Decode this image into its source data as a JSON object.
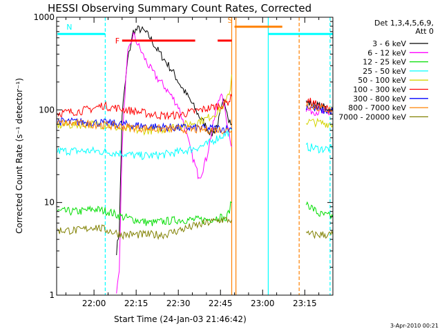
{
  "chart_data": {
    "type": "line",
    "title": "HESSI Observing Summary Count Rates, Corrected",
    "xlabel": "Start Time (24-Jan-03 21:46:42)",
    "ylabel": "Corrected Count Rate (s⁻¹ detector⁻¹)",
    "y_scale": "log",
    "ylim": [
      1,
      1000
    ],
    "xlim": [
      -13.3,
      85
    ],
    "x_unit": "minutes after 22:00",
    "x_ticks": [
      {
        "v": 0,
        "label": "22:00"
      },
      {
        "v": 15,
        "label": "22:15"
      },
      {
        "v": 30,
        "label": "22:30"
      },
      {
        "v": 45,
        "label": "22:45"
      },
      {
        "v": 60,
        "label": "23:00"
      },
      {
        "v": 75,
        "label": "23:15"
      }
    ],
    "y_ticks": [
      {
        "v": 1,
        "label": "1"
      },
      {
        "v": 10,
        "label": "10"
      },
      {
        "v": 100,
        "label": "100"
      },
      {
        "v": 1000,
        "label": "1000"
      }
    ],
    "legend_header": [
      "Det 1,3,4,5,6,9,",
      "Att 0"
    ],
    "legend_position": "right, outside plot",
    "series": [
      {
        "name": "3 - 6 keV",
        "color": "#000000",
        "points": [
          [
            8,
            3
          ],
          [
            9,
            5
          ],
          [
            10,
            90
          ],
          [
            12,
            350
          ],
          [
            14,
            700
          ],
          [
            16,
            750
          ],
          [
            18,
            700
          ],
          [
            20,
            600
          ],
          [
            22,
            470
          ],
          [
            25,
            350
          ],
          [
            28,
            260
          ],
          [
            31,
            180
          ],
          [
            34,
            130
          ],
          [
            37,
            90
          ],
          [
            40,
            65
          ],
          [
            42,
            55
          ],
          [
            44,
            70
          ],
          [
            46,
            120
          ],
          [
            47,
            110
          ],
          [
            48,
            80
          ],
          [
            49,
            70
          ],
          [
            75.5,
            120
          ],
          [
            85,
            100
          ]
        ]
      },
      {
        "name": "6 - 12 keV",
        "color": "#ff00ff",
        "points": [
          [
            8,
            1
          ],
          [
            9,
            2
          ],
          [
            10,
            40
          ],
          [
            11,
            150
          ],
          [
            12,
            400
          ],
          [
            14,
            650
          ],
          [
            16,
            480
          ],
          [
            18,
            360
          ],
          [
            20,
            280
          ],
          [
            22,
            230
          ],
          [
            25,
            180
          ],
          [
            28,
            135
          ],
          [
            30,
            110
          ],
          [
            32,
            70
          ],
          [
            34,
            40
          ],
          [
            36,
            25
          ],
          [
            37,
            20
          ],
          [
            38,
            20
          ],
          [
            40,
            30
          ],
          [
            42,
            60
          ],
          [
            44,
            120
          ],
          [
            45,
            150
          ],
          [
            46,
            120
          ],
          [
            48,
            60
          ],
          [
            49,
            40
          ],
          [
            75.5,
            100
          ],
          [
            85,
            90
          ]
        ]
      },
      {
        "name": "12 - 25 keV",
        "color": "#00dd00",
        "points": [
          [
            -13,
            8
          ],
          [
            -5,
            8
          ],
          [
            0,
            8.5
          ],
          [
            5,
            8
          ],
          [
            10,
            7
          ],
          [
            20,
            6
          ],
          [
            30,
            6.5
          ],
          [
            40,
            6.5
          ],
          [
            45,
            7
          ],
          [
            47,
            6.5
          ],
          [
            49,
            10
          ],
          [
            75.5,
            10
          ],
          [
            80,
            7.5
          ],
          [
            85,
            7
          ]
        ]
      },
      {
        "name": "25 - 50 keV",
        "color": "#00ffff",
        "points": [
          [
            -13,
            36
          ],
          [
            -5,
            36
          ],
          [
            0,
            36
          ],
          [
            5,
            35
          ],
          [
            10,
            34
          ],
          [
            15,
            32
          ],
          [
            20,
            32
          ],
          [
            25,
            33
          ],
          [
            30,
            35
          ],
          [
            35,
            38
          ],
          [
            40,
            42
          ],
          [
            44,
            50
          ],
          [
            47,
            55
          ],
          [
            49,
            60
          ],
          [
            75.5,
            40
          ],
          [
            80,
            38
          ],
          [
            85,
            38
          ]
        ]
      },
      {
        "name": "50 - 100 keV",
        "color": "#d4d400",
        "points": [
          [
            -13,
            68
          ],
          [
            0,
            70
          ],
          [
            5,
            68
          ],
          [
            10,
            62
          ],
          [
            15,
            60
          ],
          [
            20,
            60
          ],
          [
            25,
            62
          ],
          [
            30,
            67
          ],
          [
            35,
            72
          ],
          [
            40,
            80
          ],
          [
            44,
            95
          ],
          [
            47,
            120
          ],
          [
            48.5,
            170
          ],
          [
            49,
            240
          ],
          [
            75.5,
            75
          ],
          [
            85,
            70
          ]
        ]
      },
      {
        "name": "100 - 300 keV",
        "color": "#ff0000",
        "points": [
          [
            -13,
            92
          ],
          [
            -5,
            97
          ],
          [
            0,
            104
          ],
          [
            3,
            112
          ],
          [
            5,
            108
          ],
          [
            8,
            105
          ],
          [
            10,
            102
          ],
          [
            15,
            96
          ],
          [
            20,
            90
          ],
          [
            25,
            86
          ],
          [
            30,
            88
          ],
          [
            35,
            95
          ],
          [
            40,
            103
          ],
          [
            45,
            112
          ],
          [
            47,
            118
          ],
          [
            48,
            125
          ],
          [
            49,
            140
          ],
          [
            75.5,
            130
          ],
          [
            80,
            110
          ],
          [
            85,
            98
          ]
        ]
      },
      {
        "name": "300 - 800 keV",
        "color": "#0000ff",
        "points": [
          [
            -13,
            75
          ],
          [
            -5,
            74
          ],
          [
            0,
            73
          ],
          [
            5,
            72
          ],
          [
            10,
            70
          ],
          [
            15,
            68
          ],
          [
            20,
            66
          ],
          [
            25,
            65
          ],
          [
            30,
            64
          ],
          [
            35,
            64
          ],
          [
            40,
            63
          ],
          [
            45,
            63
          ],
          [
            49,
            62
          ],
          [
            75.5,
            110
          ],
          [
            80,
            100
          ],
          [
            85,
            96
          ]
        ]
      },
      {
        "name": "800 - 7000 keV",
        "color": "#ff8000",
        "points": [
          [
            -13,
            72
          ],
          [
            -5,
            71
          ],
          [
            0,
            70
          ],
          [
            5,
            68
          ],
          [
            10,
            66
          ],
          [
            15,
            64
          ],
          [
            20,
            63
          ],
          [
            25,
            62
          ],
          [
            30,
            62
          ],
          [
            35,
            61
          ],
          [
            40,
            61
          ],
          [
            45,
            61
          ],
          [
            49,
            60
          ],
          [
            75.5,
            115
          ],
          [
            80,
            105
          ],
          [
            85,
            100
          ]
        ]
      },
      {
        "name": "7000 - 20000 keV",
        "color": "#808000",
        "points": [
          [
            -13,
            5
          ],
          [
            -5,
            5
          ],
          [
            0,
            5.5
          ],
          [
            5,
            5
          ],
          [
            10,
            4.5
          ],
          [
            15,
            4.5
          ],
          [
            20,
            4.5
          ],
          [
            25,
            4.5
          ],
          [
            30,
            5
          ],
          [
            35,
            5.5
          ],
          [
            40,
            6
          ],
          [
            45,
            6.5
          ],
          [
            49,
            6.5
          ],
          [
            75.5,
            4.5
          ],
          [
            80,
            4.5
          ],
          [
            85,
            4.5
          ]
        ]
      }
    ],
    "flags": [
      {
        "name": "F",
        "color": "#ff0000",
        "value": 560,
        "segments": [
          [
            10,
            36
          ],
          [
            44,
            49
          ]
        ]
      },
      {
        "name": "N",
        "color": "#00ffff",
        "value": 660,
        "segments": [
          [
            -13,
            4
          ],
          [
            62,
            85
          ]
        ]
      },
      {
        "name": "S",
        "color": "#ff8000",
        "value": 790,
        "segments": [
          [
            50,
            67
          ]
        ]
      }
    ],
    "vlines": [
      {
        "x": 4,
        "color": "#00ffff",
        "style": "dashed"
      },
      {
        "x": 49,
        "color": "#ff8000",
        "style": "solid"
      },
      {
        "x": 50.5,
        "color": "#ff8000",
        "style": "solid"
      },
      {
        "x": 62,
        "color": "#00ffff",
        "style": "solid"
      },
      {
        "x": 73,
        "color": "#ff8000",
        "style": "dashed"
      },
      {
        "x": 84,
        "color": "#00ffff",
        "style": "dashed"
      }
    ]
  },
  "footer": {
    "date": "3-Apr-2010 00:21"
  }
}
